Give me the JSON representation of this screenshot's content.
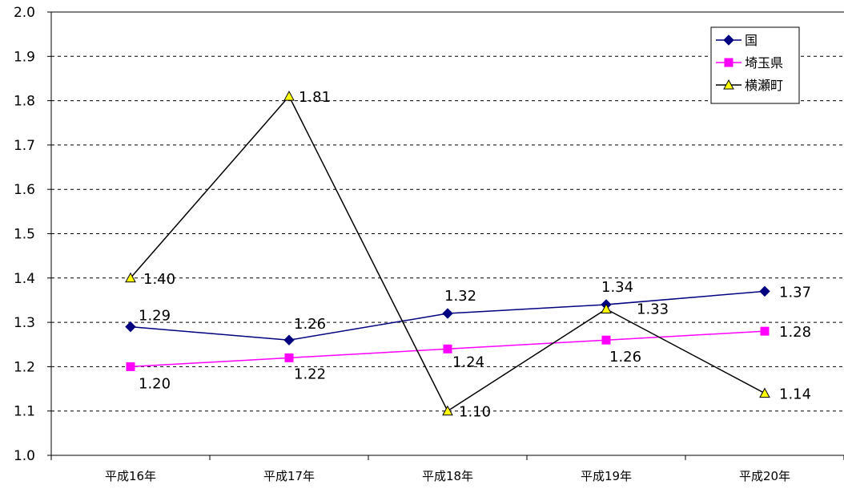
{
  "chart_data": {
    "type": "line",
    "title": "",
    "xlabel": "",
    "ylabel": "",
    "ylim": [
      1.0,
      2.0
    ],
    "ytick_step": 0.1,
    "grid": "horizontal-dashed",
    "legend_position": "top-right",
    "categories": [
      "平成16年",
      "平成17年",
      "平成18年",
      "平成19年",
      "平成20年"
    ],
    "series": [
      {
        "name": "国",
        "values": [
          1.29,
          1.26,
          1.32,
          1.34,
          1.37
        ],
        "labels": [
          "1.29",
          "1.26",
          "1.32",
          "1.34",
          "1.37"
        ],
        "color": "#000080",
        "marker": "diamond"
      },
      {
        "name": "埼玉県",
        "values": [
          1.2,
          1.22,
          1.24,
          1.26,
          1.28
        ],
        "labels": [
          "1.20",
          "1.22",
          "1.24",
          "1.26",
          "1.28"
        ],
        "color": "#ff00ff",
        "marker": "square"
      },
      {
        "name": "横瀬町",
        "values": [
          1.4,
          1.81,
          1.1,
          1.33,
          1.14
        ],
        "labels": [
          "1.40",
          "1.81",
          "1.10",
          "1.33",
          "1.14"
        ],
        "color": "#000000",
        "marker": "triangle",
        "marker_fill": "#ffff00"
      }
    ]
  }
}
